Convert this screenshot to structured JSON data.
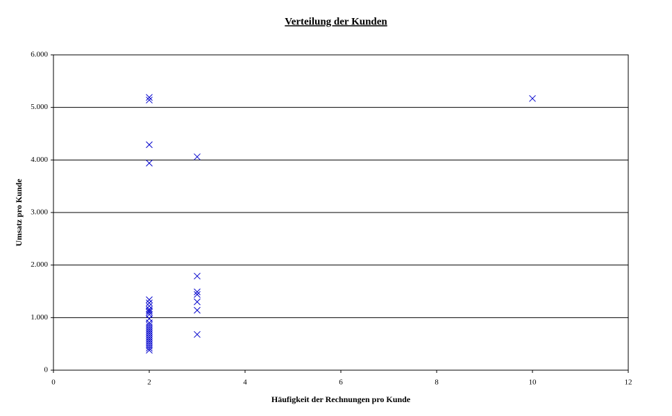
{
  "chart_data": {
    "type": "scatter",
    "title": "Verteilung der Kunden",
    "x_label": "Häufigkeit der Rechnungen pro Kunde",
    "y_label": "Umsatz pro Kunde",
    "color": "#0000cc",
    "grid": true,
    "marker": "x",
    "x": [
      2,
      2,
      2,
      2,
      2,
      2,
      2,
      2,
      2,
      2,
      2,
      2,
      2,
      2,
      2,
      2,
      2,
      2,
      2,
      2,
      2,
      2,
      2,
      2,
      2,
      2,
      3,
      3,
      3,
      3,
      3,
      3,
      3,
      10
    ],
    "y": [
      5190,
      5140,
      4290,
      3940,
      1340,
      1280,
      1220,
      1160,
      1130,
      1100,
      1060,
      980,
      900,
      860,
      820,
      780,
      740,
      700,
      660,
      620,
      580,
      540,
      500,
      460,
      420,
      380,
      4060,
      1790,
      1490,
      1440,
      1300,
      1140,
      680,
      5170
    ],
    "xlim": [
      0,
      12
    ],
    "xticks": [
      0,
      2,
      4,
      6,
      8,
      10,
      12
    ],
    "ylim": [
      0,
      6000
    ],
    "yticks": [
      0,
      {
        "value": 1000,
        "label": "1.000"
      },
      {
        "value": 2000,
        "label": "2.000"
      },
      {
        "value": 3000,
        "label": "3.000"
      },
      {
        "value": 4000,
        "label": "4.000"
      },
      {
        "value": 5000,
        "label": "5.000"
      },
      {
        "value": 6000,
        "label": "6.000"
      }
    ]
  }
}
